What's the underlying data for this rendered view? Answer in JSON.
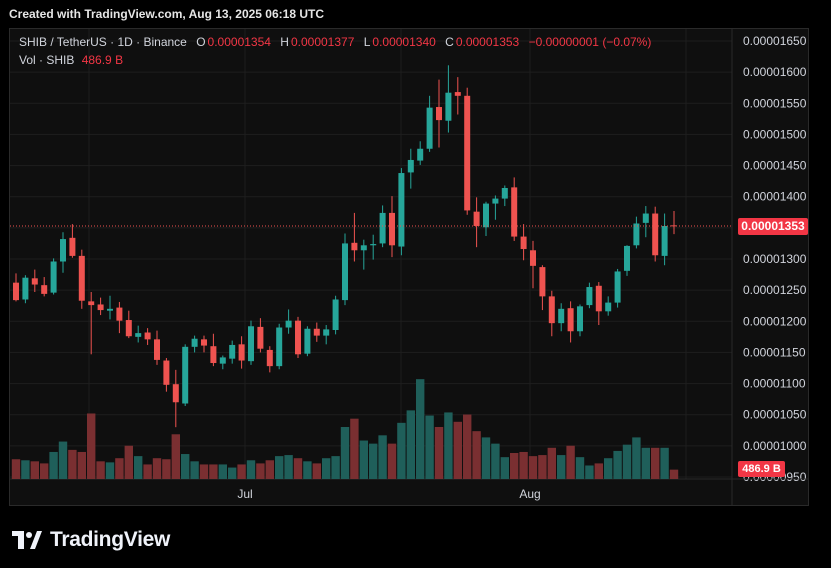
{
  "created_by": "Created with TradingView.com, Aug 13, 2025 06:18 UTC",
  "brand": "TradingView",
  "legend": {
    "symbol": "SHIB / TetherUS · 1D · Binance",
    "o_label": "O",
    "o": "0.00001354",
    "h_label": "H",
    "h": "0.00001377",
    "l_label": "L",
    "l": "0.00001340",
    "c_label": "C",
    "c": "0.00001353",
    "change": "−0.00000001 (−0.07%)",
    "vol_label": "Vol · SHIB",
    "vol": "486.9 B"
  },
  "price_tag": "0.00001353",
  "volume_tag": "486.9 B",
  "colors": {
    "up": "#26a69a",
    "down": "#ef5350",
    "up_vol": "#1f5f5a",
    "down_vol": "#7a2f31",
    "tag": "#f23645"
  },
  "chart_data": {
    "type": "candlestick",
    "x_ticks": [
      "Jul",
      "Aug"
    ],
    "y_ticks": [
      "0.00001650",
      "0.00001600",
      "0.00001550",
      "0.00001500",
      "0.00001450",
      "0.00001400",
      "0.00001350",
      "0.00001300",
      "0.00001250",
      "0.00001200",
      "0.00001150",
      "0.00001100",
      "0.00001050",
      "0.00001000",
      "0.00000950"
    ],
    "ylim": [
      9.5e-06,
      1.66e-05
    ],
    "last_price": 1.353e-05,
    "grid": true,
    "candles_o_h_l_c_vol": [
      [
        1.262,
        1.277,
        1.232,
        1.234,
        19
      ],
      [
        1.235,
        1.274,
        1.229,
        1.27,
        18
      ],
      [
        1.269,
        1.283,
        1.247,
        1.259,
        17
      ],
      [
        1.258,
        1.271,
        1.24,
        1.244,
        15
      ],
      [
        1.246,
        1.301,
        1.243,
        1.296,
        26
      ],
      [
        1.296,
        1.343,
        1.278,
        1.332,
        36
      ],
      [
        1.334,
        1.356,
        1.302,
        1.305,
        28
      ],
      [
        1.305,
        1.315,
        1.22,
        1.233,
        26
      ],
      [
        1.232,
        1.247,
        1.147,
        1.226,
        63
      ],
      [
        1.227,
        1.238,
        1.21,
        1.218,
        17
      ],
      [
        1.217,
        1.241,
        1.203,
        1.22,
        16
      ],
      [
        1.222,
        1.231,
        1.181,
        1.201,
        20
      ],
      [
        1.202,
        1.217,
        1.173,
        1.176,
        32
      ],
      [
        1.175,
        1.193,
        1.166,
        1.181,
        22
      ],
      [
        1.182,
        1.189,
        1.162,
        1.171,
        14
      ],
      [
        1.171,
        1.185,
        1.13,
        1.138,
        20
      ],
      [
        1.137,
        1.141,
        1.087,
        1.098,
        19
      ],
      [
        1.099,
        1.122,
        1.03,
        1.07,
        43
      ],
      [
        1.068,
        1.163,
        1.064,
        1.159,
        24
      ],
      [
        1.159,
        1.177,
        1.15,
        1.172,
        17
      ],
      [
        1.171,
        1.177,
        1.15,
        1.161,
        14
      ],
      [
        1.16,
        1.18,
        1.128,
        1.133,
        14
      ],
      [
        1.132,
        1.145,
        1.123,
        1.142,
        14
      ],
      [
        1.14,
        1.169,
        1.132,
        1.162,
        11
      ],
      [
        1.163,
        1.176,
        1.124,
        1.137,
        14
      ],
      [
        1.136,
        1.201,
        1.13,
        1.192,
        18
      ],
      [
        1.191,
        1.205,
        1.15,
        1.156,
        15
      ],
      [
        1.154,
        1.16,
        1.118,
        1.128,
        18
      ],
      [
        1.128,
        1.196,
        1.123,
        1.19,
        22
      ],
      [
        1.19,
        1.219,
        1.18,
        1.201,
        23
      ],
      [
        1.201,
        1.207,
        1.141,
        1.147,
        20
      ],
      [
        1.148,
        1.192,
        1.144,
        1.188,
        17
      ],
      [
        1.188,
        1.198,
        1.167,
        1.177,
        15
      ],
      [
        1.177,
        1.194,
        1.163,
        1.187,
        20
      ],
      [
        1.186,
        1.241,
        1.179,
        1.235,
        22
      ],
      [
        1.234,
        1.341,
        1.226,
        1.325,
        50
      ],
      [
        1.326,
        1.374,
        1.296,
        1.314,
        58
      ],
      [
        1.314,
        1.331,
        1.283,
        1.322,
        37
      ],
      [
        1.322,
        1.339,
        1.299,
        1.324,
        34
      ],
      [
        1.325,
        1.386,
        1.319,
        1.374,
        42
      ],
      [
        1.374,
        1.401,
        1.303,
        1.322,
        34
      ],
      [
        1.32,
        1.446,
        1.306,
        1.438,
        54
      ],
      [
        1.439,
        1.477,
        1.413,
        1.459,
        66
      ],
      [
        1.458,
        1.489,
        1.451,
        1.477,
        96
      ],
      [
        1.477,
        1.562,
        1.472,
        1.543,
        61
      ],
      [
        1.544,
        1.588,
        1.479,
        1.523,
        50
      ],
      [
        1.522,
        1.611,
        1.503,
        1.567,
        64
      ],
      [
        1.568,
        1.592,
        1.532,
        1.562,
        55
      ],
      [
        1.562,
        1.575,
        1.371,
        1.378,
        62
      ],
      [
        1.376,
        1.399,
        1.319,
        1.353,
        46
      ],
      [
        1.351,
        1.392,
        1.337,
        1.389,
        40
      ],
      [
        1.389,
        1.402,
        1.363,
        1.397,
        34
      ],
      [
        1.397,
        1.418,
        1.385,
        1.414,
        21
      ],
      [
        1.415,
        1.431,
        1.329,
        1.336,
        25
      ],
      [
        1.336,
        1.356,
        1.298,
        1.316,
        26
      ],
      [
        1.314,
        1.329,
        1.253,
        1.289,
        22
      ],
      [
        1.287,
        1.29,
        1.218,
        1.24,
        23
      ],
      [
        1.24,
        1.249,
        1.176,
        1.197,
        30
      ],
      [
        1.197,
        1.229,
        1.184,
        1.22,
        23
      ],
      [
        1.221,
        1.232,
        1.166,
        1.184,
        32
      ],
      [
        1.184,
        1.227,
        1.176,
        1.224,
        21
      ],
      [
        1.226,
        1.262,
        1.221,
        1.255,
        13
      ],
      [
        1.257,
        1.263,
        1.194,
        1.216,
        15
      ],
      [
        1.216,
        1.24,
        1.209,
        1.23,
        20
      ],
      [
        1.23,
        1.284,
        1.222,
        1.28,
        27
      ],
      [
        1.281,
        1.322,
        1.273,
        1.321,
        33
      ],
      [
        1.322,
        1.368,
        1.317,
        1.357,
        40
      ],
      [
        1.358,
        1.385,
        1.335,
        1.373,
        30
      ],
      [
        1.373,
        1.384,
        1.296,
        1.306,
        30
      ],
      [
        1.305,
        1.373,
        1.29,
        1.353,
        30
      ],
      [
        1.354,
        1.377,
        1.34,
        1.353,
        9
      ]
    ],
    "price_unit_note": "prices in units of 1e-5"
  }
}
